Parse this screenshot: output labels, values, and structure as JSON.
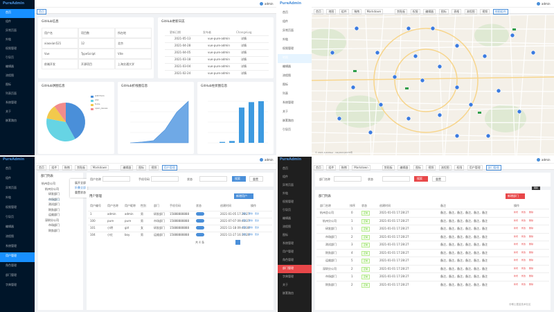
{
  "dashboard": {
    "brand": "PureAdmin",
    "user": "admin",
    "tab": "首页",
    "menu": [
      "首页",
      "组件",
      "异常页面",
      "外链",
      "权限管理",
      "引导页",
      "编辑器",
      "流程图",
      "图标",
      "列表页面",
      "系统管理",
      "关于",
      "嵌套路由"
    ],
    "info": {
      "title": "GitHub信息",
      "cells": [
        [
          "用户名",
          "项目数",
          "所在地"
        ],
        [
          "xiaoxian521",
          "12",
          "北京"
        ],
        [
          "Vue",
          "TypeScript",
          "Vite"
        ],
        [
          "前端开发",
          "开源项目",
          "上海交通大学"
        ]
      ]
    },
    "log": {
      "title": "GitHub更新日志",
      "headers": [
        "更新日期",
        "发布者",
        "ChangeLog"
      ],
      "rows": [
        [
          "2021-05-13",
          "vue-pure-admin",
          "详情"
        ],
        [
          "2021-04-28",
          "vue-pure-admin",
          "详情"
        ],
        [
          "2021-04-05",
          "vue-pure-admin",
          "详情"
        ],
        [
          "2021-03-18",
          "vue-pure-admin",
          "详情"
        ],
        [
          "2021-03-04",
          "vue-pure-admin",
          "详情"
        ],
        [
          "2021-02-24",
          "vue-pure-admin",
          "详情"
        ]
      ]
    },
    "pie": {
      "title": "GitHub饼图信息",
      "names": [
        "watchers",
        "star",
        "forks",
        "open_issues"
      ],
      "values": [
        42,
        36,
        12,
        10
      ],
      "colors": [
        "#4a8fd9",
        "#66d4e4",
        "#f2c94c",
        "#f28c8c"
      ]
    },
    "line": {
      "title": "GitHub折线图信息",
      "values": [
        0,
        2,
        5,
        30,
        70,
        95
      ]
    },
    "bar": {
      "title": "GitHub柱状图信息",
      "values": [
        0,
        2,
        4,
        78,
        90,
        92
      ]
    }
  },
  "map": {
    "brand": "PureAdmin",
    "user": "admin",
    "menu": [
      "首页",
      "组件",
      "异常页面",
      "外链",
      "权限管理",
      "地图",
      "编辑器",
      "流程图",
      "图标",
      "列表",
      "系统管理",
      "关于",
      "嵌套路由",
      "引导页"
    ],
    "tabs": [
      "首页",
      "地图",
      "组件",
      "拖拽",
      "Markdown",
      "剪贴板",
      "权限",
      "编辑器",
      "图标",
      "表格",
      "流程图",
      "视频",
      "地图组件"
    ],
    "attribution": "© 2021 AutoNavi - GS(2021)6375号"
  },
  "users": {
    "brand": "PureAdmin",
    "user": "admin",
    "menu": [
      "首页",
      "组件",
      "异常页面",
      "外链",
      "权限管理",
      "引导页",
      "编辑器",
      "流程图",
      "系统管理",
      "用户管理",
      "角色管理",
      "部门管理",
      "字典管理"
    ],
    "tabs": [
      "首页",
      "组件",
      "拖拽",
      "剪贴板",
      "Markdown",
      "编辑器",
      "图标",
      "视频",
      "用户管理"
    ],
    "tree_title": "部门列表",
    "tree": [
      "杭州总公司",
      "杭州分公司",
      "研发部门",
      "市场部门",
      "测试部门",
      "财务部门",
      "运维部门",
      "深圳分公司",
      "市场部门",
      "财务部门"
    ],
    "context_menu": [
      "展开全部",
      "折叠全部",
      "重置状态"
    ],
    "search": [
      "用户名称",
      "手机号码",
      "状态"
    ],
    "buttons": [
      "搜索",
      "重置",
      "新增用户"
    ],
    "table_title": "用户管理",
    "headers": [
      "用户编号",
      "用户名称",
      "用户昵称",
      "性别",
      "部门",
      "手机号码",
      "状态",
      "创建时间",
      "操作"
    ],
    "rows": [
      [
        "1",
        "admin",
        "admin",
        "男",
        "研发部门",
        "15888888888",
        "2021-01-05 17:28:27"
      ],
      [
        "100",
        "pure",
        "pure",
        "男",
        "市场部门",
        "15888888888",
        "2021-07-07 09:43:37"
      ],
      [
        "101",
        "小明",
        "girl",
        "女",
        "研发部门",
        "15888888888",
        "2021-11-18 09:43:30"
      ],
      [
        "104",
        "小红",
        "boy",
        "男",
        "运维部门",
        "15888888888",
        "2021-11-27 16:14:20"
      ]
    ],
    "actions": [
      "修改",
      "删除",
      "更多"
    ],
    "pagination": "共 4 条"
  },
  "depts": {
    "brand": "PureAdmin",
    "user": "admin",
    "menu": [
      "首页",
      "组件",
      "异常页面",
      "外链",
      "权限管理",
      "引导页",
      "编辑器",
      "流程图",
      "图标",
      "系统管理",
      "用户管理",
      "角色管理",
      "部门管理",
      "字典管理",
      "关于",
      "嵌套路由"
    ],
    "tabs": [
      "首页",
      "组件",
      "拖拽",
      "Markdown",
      "剪贴板",
      "编辑器",
      "图标",
      "视频",
      "流程图",
      "权限",
      "用户管理",
      "部门管理"
    ],
    "search": [
      "部门名称",
      "状态"
    ],
    "buttons": [
      "搜索",
      "重置",
      "新增部门"
    ],
    "tooltip": "刷新",
    "table_title": "部门列表",
    "headers": [
      "部门名称",
      "排序",
      "状态",
      "创建时间",
      "备注",
      "操作"
    ],
    "rows": [
      [
        "杭州总公司",
        "0",
        "2021-01-01 17:28:27"
      ],
      [
        "杭州分公司",
        "1",
        "2021-01-01 17:28:27"
      ],
      [
        "研发部门",
        "1",
        "2021-01-01 17:28:27"
      ],
      [
        "市场部门",
        "2",
        "2021-01-01 17:28:27"
      ],
      [
        "测试部门",
        "3",
        "2021-01-01 17:28:27"
      ],
      [
        "财务部门",
        "4",
        "2021-01-01 17:28:27"
      ],
      [
        "运维部门",
        "5",
        "2021-01-01 17:28:27"
      ],
      [
        "深圳分公司",
        "2",
        "2021-01-01 17:28:27"
      ],
      [
        "市场部门",
        "1",
        "2021-01-01 17:28:27"
      ],
      [
        "财务部门",
        "2",
        "2021-01-01 17:28:27"
      ]
    ],
    "status": "正常",
    "remark": "备注，备注，备注，备注，备注，备注",
    "actions": [
      "新增",
      "修改",
      "删除"
    ],
    "watermark": "@稀土掘金技术社区"
  }
}
